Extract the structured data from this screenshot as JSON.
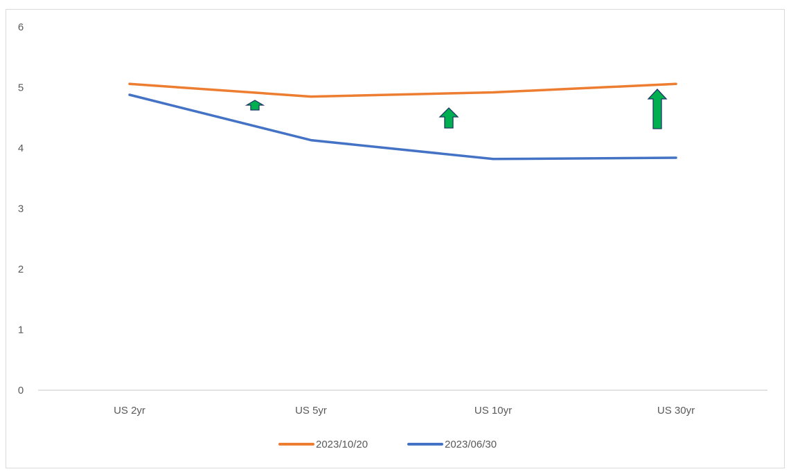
{
  "chart_data": {
    "type": "line",
    "title": "",
    "xlabel": "",
    "ylabel": "",
    "ylim": [
      0,
      6
    ],
    "yticks": [
      "0",
      "1",
      "2",
      "3",
      "4",
      "5",
      "6"
    ],
    "categories": [
      "US 2yr",
      "US 5yr",
      "US 10yr",
      "US 30yr"
    ],
    "grid": false,
    "legend_position": "bottom",
    "series": [
      {
        "name": "2023/10/20",
        "color": "#ED7D31",
        "values": [
          5.06,
          4.85,
          4.92,
          5.06
        ]
      },
      {
        "name": "2023/06/30",
        "color": "#4472C4",
        "values": [
          4.88,
          4.13,
          3.82,
          3.84
        ]
      }
    ],
    "annotations": [
      {
        "type": "up-arrow",
        "color": "#00B050",
        "position": "between US 2yr and US 5yr",
        "size": "small"
      },
      {
        "type": "up-arrow",
        "color": "#00B050",
        "position": "between US 5yr and US 10yr",
        "size": "medium"
      },
      {
        "type": "up-arrow",
        "color": "#00B050",
        "position": "at US 30yr",
        "size": "large"
      }
    ]
  },
  "legend": {
    "items": [
      {
        "label": "2023/10/20",
        "color": "#ED7D31"
      },
      {
        "label": "2023/06/30",
        "color": "#4472C4"
      }
    ]
  }
}
